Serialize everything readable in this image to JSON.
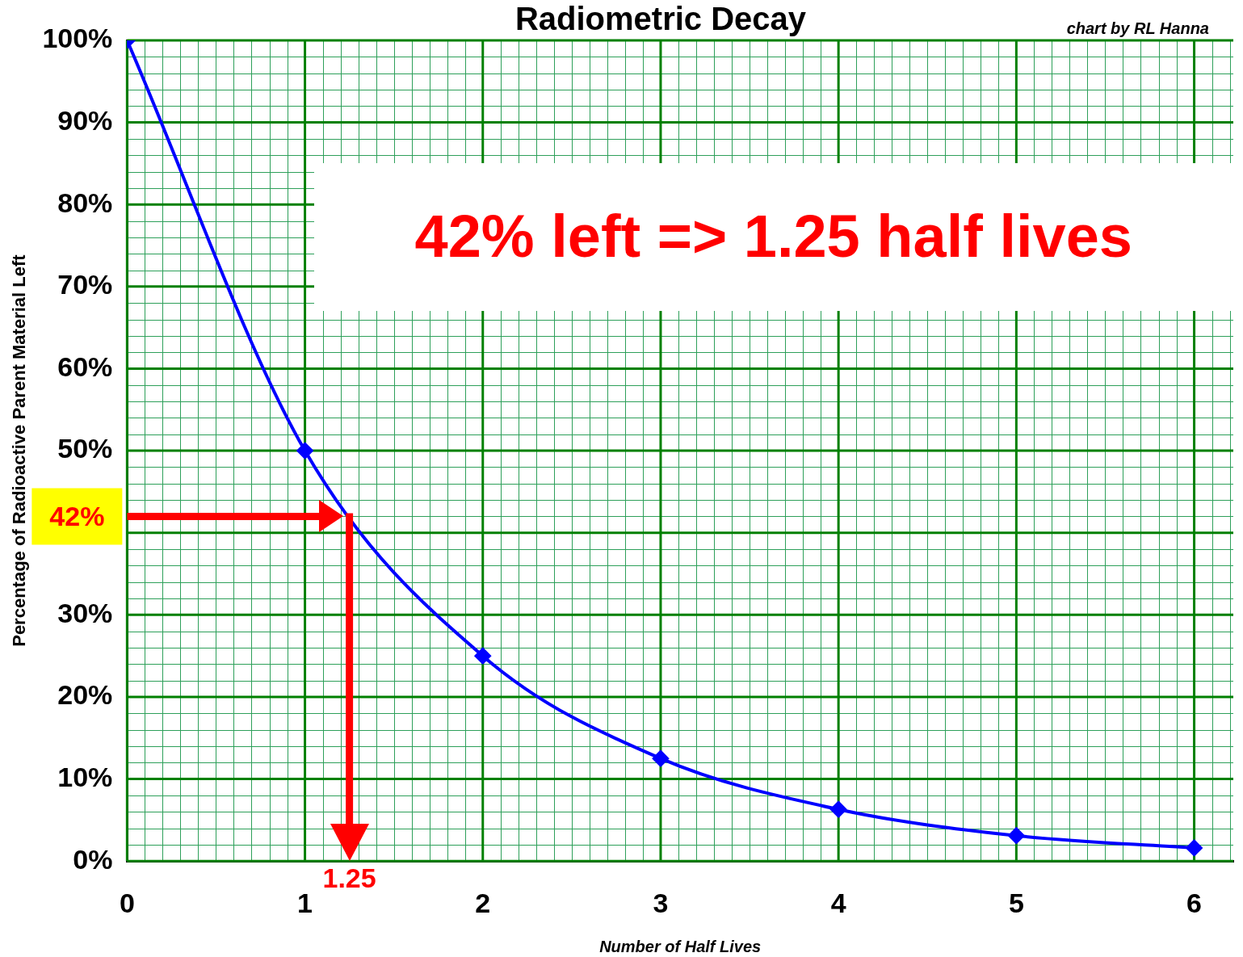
{
  "chart_data": {
    "type": "line",
    "title": "Radiometric Decay",
    "xlabel": "Number of Half Lives",
    "ylabel": "Percentage of Radioactive Parent Material Left",
    "x": [
      0,
      1,
      2,
      3,
      4,
      5,
      6
    ],
    "series": [
      {
        "color": "#0000ff",
        "values": [
          100,
          50,
          25,
          12.5,
          6.3,
          3.1,
          1.6
        ]
      }
    ],
    "xlim": [
      0,
      6.22
    ],
    "xticks": [
      0,
      1,
      2,
      3,
      4,
      5,
      6
    ],
    "ylim": [
      0,
      100
    ],
    "yticks": [
      {
        "value": 0,
        "label": "0%"
      },
      {
        "value": 10,
        "label": "10%"
      },
      {
        "value": 20,
        "label": "20%"
      },
      {
        "value": 30,
        "label": "30%"
      },
      {
        "value": 40,
        "label": null
      },
      {
        "value": 50,
        "label": "50%"
      },
      {
        "value": 60,
        "label": "60%"
      },
      {
        "value": 70,
        "label": "70%"
      },
      {
        "value": 80,
        "label": "80%"
      },
      {
        "value": 90,
        "label": "90%"
      },
      {
        "value": 100,
        "label": "100%"
      }
    ],
    "ref_lines": [
      {
        "axis": "y",
        "value": 42,
        "label": "42%",
        "color": "#ff0000"
      },
      {
        "axis": "x",
        "value": 1.25,
        "label": "1.25",
        "color": "#ff0000"
      }
    ],
    "annotations": [
      "42% left => 1.25 half lives",
      "chart by RL Hanna"
    ],
    "grid": true,
    "marker": "diamond",
    "line_style": "solid",
    "legend": false
  }
}
